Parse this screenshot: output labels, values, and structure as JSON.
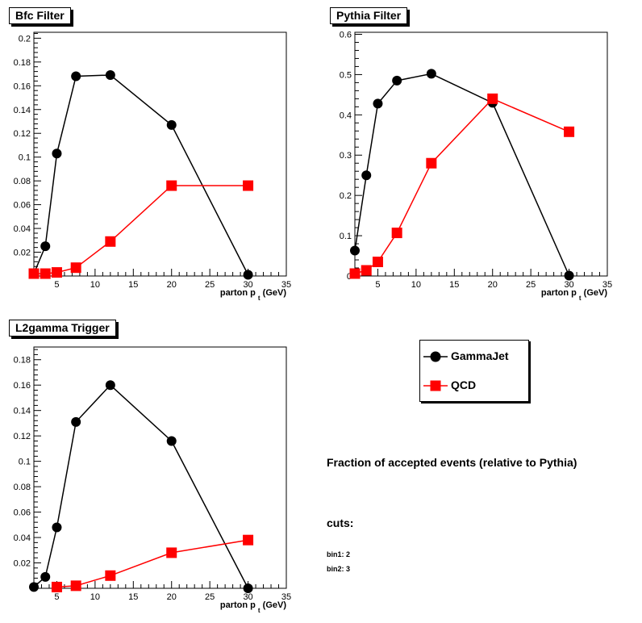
{
  "chart_data": [
    {
      "type": "line",
      "title": "Bfc Filter",
      "xlabel": "parton p_t (GeV)",
      "xlim": [
        2,
        35
      ],
      "ylim": [
        0,
        0.205
      ],
      "xticks": [
        5,
        10,
        15,
        20,
        25,
        30,
        35
      ],
      "yticks": [
        0.02,
        0.04,
        0.06,
        0.08,
        0.1,
        0.12,
        0.14,
        0.16,
        0.18,
        0.2
      ],
      "series": [
        {
          "name": "GammaJet",
          "color": "#000000",
          "marker": "circle",
          "x": [
            2,
            3.5,
            5,
            7.5,
            12,
            20,
            30
          ],
          "y": [
            0.002,
            0.025,
            0.103,
            0.168,
            0.169,
            0.127,
            0.001
          ]
        },
        {
          "name": "QCD",
          "color": "#ff0000",
          "marker": "square",
          "x": [
            2,
            3.5,
            5,
            7.5,
            12,
            20,
            30
          ],
          "y": [
            0.002,
            0.002,
            0.003,
            0.007,
            0.029,
            0.076,
            0.076
          ]
        }
      ]
    },
    {
      "type": "line",
      "title": "Pythia Filter",
      "xlabel": "parton p_t (GeV)",
      "xlim": [
        2,
        35
      ],
      "ylim": [
        0,
        0.605
      ],
      "xticks": [
        5,
        10,
        15,
        20,
        25,
        30,
        35
      ],
      "yticks": [
        0,
        0.1,
        0.2,
        0.3,
        0.4,
        0.5,
        0.6
      ],
      "series": [
        {
          "name": "GammaJet",
          "color": "#000000",
          "marker": "circle",
          "x": [
            2,
            3.5,
            5,
            7.5,
            12,
            20,
            30
          ],
          "y": [
            0.063,
            0.25,
            0.428,
            0.485,
            0.502,
            0.43,
            0.001
          ]
        },
        {
          "name": "QCD",
          "color": "#ff0000",
          "marker": "square",
          "x": [
            2,
            3.5,
            5,
            7.5,
            12,
            20,
            30
          ],
          "y": [
            0.006,
            0.014,
            0.035,
            0.107,
            0.28,
            0.44,
            0.358
          ]
        }
      ]
    },
    {
      "type": "line",
      "title": "L2gamma Trigger",
      "xlabel": "parton p_t (GeV)",
      "xlim": [
        2,
        35
      ],
      "ylim": [
        0,
        0.19
      ],
      "xticks": [
        5,
        10,
        15,
        20,
        25,
        30,
        35
      ],
      "yticks": [
        0.02,
        0.04,
        0.06,
        0.08,
        0.1,
        0.12,
        0.14,
        0.16,
        0.18
      ],
      "series": [
        {
          "name": "GammaJet",
          "color": "#000000",
          "marker": "circle",
          "x": [
            2,
            3.5,
            5,
            7.5,
            12,
            20,
            30
          ],
          "y": [
            0.001,
            0.009,
            0.048,
            0.131,
            0.16,
            0.116,
            0.0
          ]
        },
        {
          "name": "QCD",
          "color": "#ff0000",
          "marker": "square",
          "x": [
            5,
            7.5,
            12,
            20,
            30
          ],
          "y": [
            0.001,
            0.002,
            0.01,
            0.028,
            0.038
          ]
        }
      ]
    }
  ],
  "legend": {
    "items": [
      {
        "label": "GammaJet",
        "color": "#000000",
        "marker": "circle"
      },
      {
        "label": "QCD",
        "color": "#ff0000",
        "marker": "square"
      }
    ]
  },
  "caption": "Fraction of accepted events (relative to Pythia)",
  "cuts": {
    "heading": "cuts:",
    "lines": [
      "bin1: 2",
      "bin2: 3"
    ]
  },
  "xlabel_parts": {
    "main": "parton p",
    "sub": "t",
    "unit": " (GeV)"
  }
}
